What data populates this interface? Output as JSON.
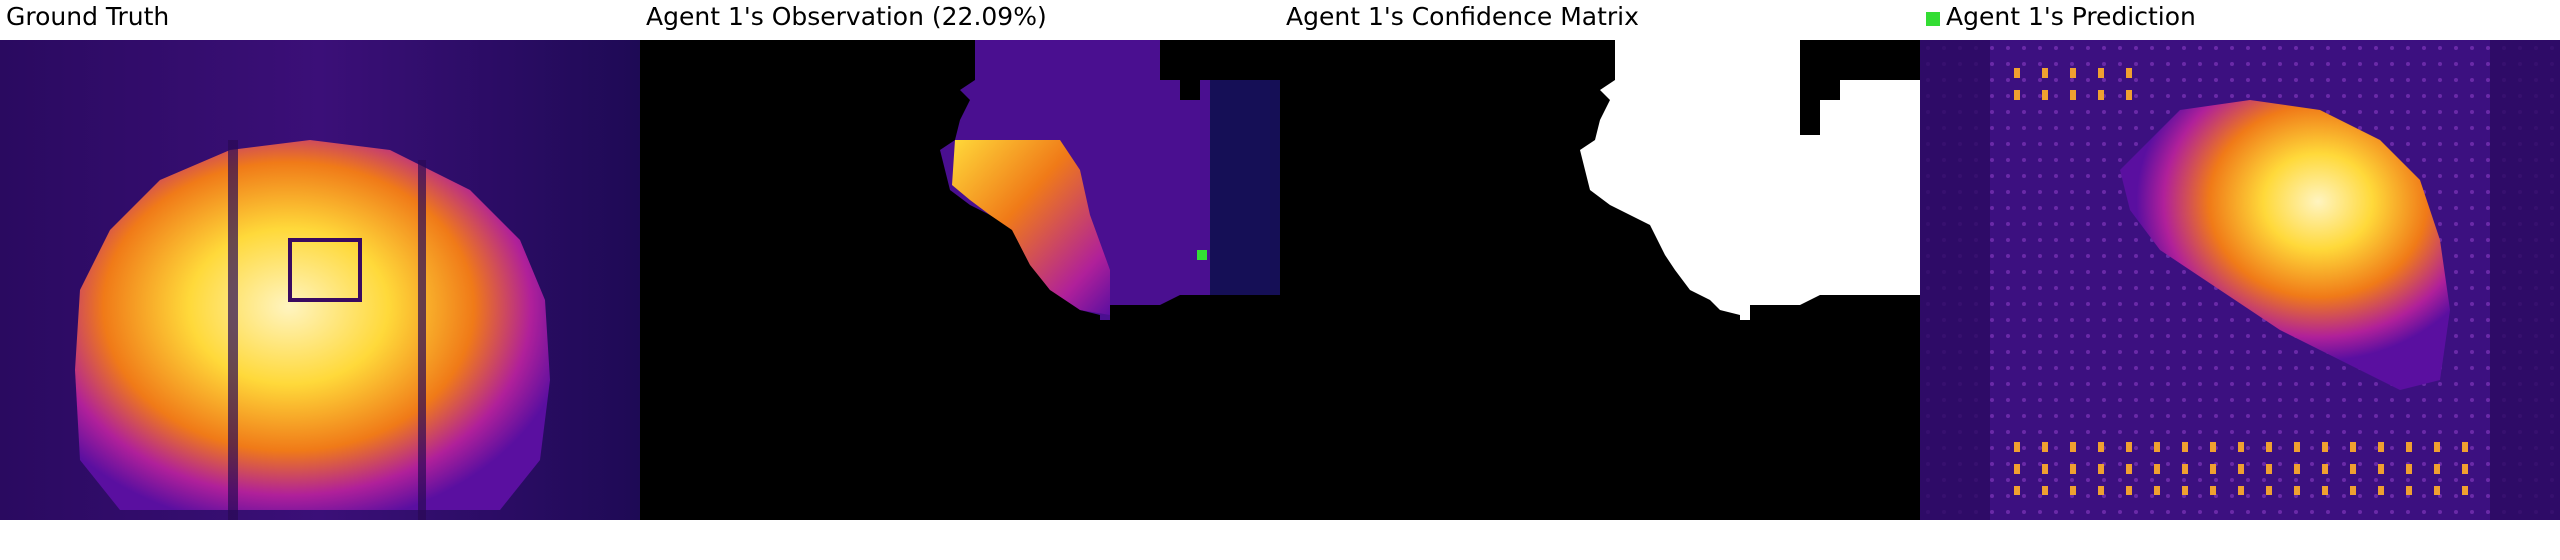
{
  "panels": {
    "ground_truth": {
      "title": "Ground Truth"
    },
    "observation": {
      "title": "Agent 1's Observation (22.09%)"
    },
    "confidence": {
      "title": "Agent 1's Confidence Matrix"
    },
    "prediction": {
      "title": "Agent 1's Prediction",
      "legend_color": "#33dd33"
    }
  },
  "colors": {
    "heat_dark": "#1a0038",
    "heat_purple": "#5a0fa0",
    "heat_magenta": "#b0209a",
    "heat_orange": "#f07a18",
    "heat_yellow": "#ffd93a",
    "heat_white": "#fff4c0",
    "mask_black": "#000000",
    "mask_white": "#ffffff",
    "agent_marker": "#33dd33"
  }
}
